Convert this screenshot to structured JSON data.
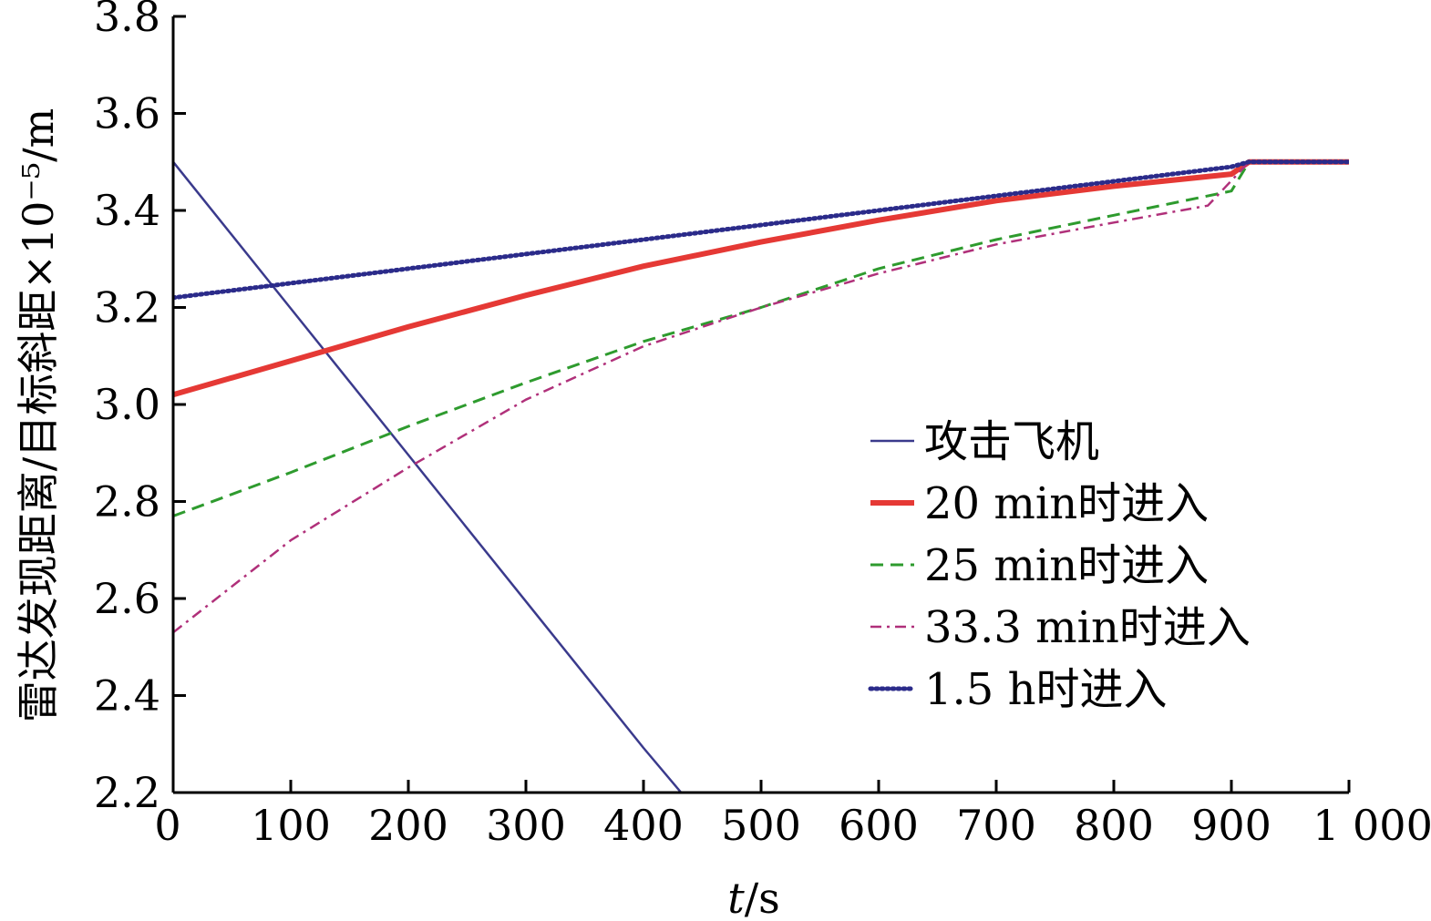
{
  "chart_data": {
    "type": "line",
    "title": "",
    "xlabel_italic": "t",
    "xlabel_unit": "/s",
    "ylabel": "雷达发现距离/目标斜距×10⁻⁵/m",
    "xlim": [
      0,
      1000
    ],
    "ylim": [
      2.2,
      3.8
    ],
    "xticks": [
      0,
      100,
      200,
      300,
      400,
      500,
      600,
      700,
      800,
      900,
      1000
    ],
    "xtick_labels": [
      "0",
      "100",
      "200",
      "300",
      "400",
      "500",
      "600",
      "700",
      "800",
      "900",
      "1 000"
    ],
    "yticks": [
      2.2,
      2.4,
      2.6,
      2.8,
      3.0,
      3.2,
      3.4,
      3.6,
      3.8
    ],
    "ytick_labels": [
      "2.2",
      "2.4",
      "2.6",
      "2.8",
      "3.0",
      "3.2",
      "3.4",
      "3.6",
      "3.8"
    ],
    "grid": false,
    "legend_position": "right-center",
    "series": [
      {
        "name": "攻击飞机",
        "color": "#3a3a8c",
        "style": "solid",
        "x": [
          0,
          100,
          200,
          300,
          400,
          432
        ],
        "y": [
          3.5,
          3.198,
          2.896,
          2.594,
          2.292,
          2.2
        ]
      },
      {
        "name": "20 min时进入",
        "color": "#e53935",
        "style": "solid-thick",
        "x": [
          0,
          100,
          200,
          300,
          400,
          500,
          600,
          700,
          800,
          900,
          915,
          1000
        ],
        "y": [
          3.02,
          3.09,
          3.16,
          3.225,
          3.285,
          3.335,
          3.38,
          3.42,
          3.45,
          3.475,
          3.5,
          3.5
        ]
      },
      {
        "name": "25 min时进入",
        "color": "#2e9b2e",
        "style": "dashed",
        "x": [
          0,
          100,
          200,
          300,
          400,
          500,
          600,
          700,
          800,
          900,
          915,
          1000
        ],
        "y": [
          2.77,
          2.86,
          2.955,
          3.045,
          3.13,
          3.2,
          3.28,
          3.34,
          3.39,
          3.44,
          3.5,
          3.5
        ]
      },
      {
        "name": "33.3 min时进入",
        "color": "#b0307a",
        "style": "dash-dot",
        "x": [
          0,
          100,
          200,
          300,
          400,
          500,
          600,
          700,
          800,
          880,
          915,
          1000
        ],
        "y": [
          2.53,
          2.72,
          2.87,
          3.01,
          3.12,
          3.2,
          3.27,
          3.33,
          3.375,
          3.41,
          3.5,
          3.5
        ]
      },
      {
        "name": "1.5 h时进入",
        "color": "#2b2b8a",
        "style": "dotted",
        "x": [
          0,
          100,
          200,
          300,
          400,
          500,
          600,
          700,
          800,
          900,
          915,
          1000
        ],
        "y": [
          3.22,
          3.25,
          3.28,
          3.31,
          3.34,
          3.37,
          3.4,
          3.43,
          3.46,
          3.49,
          3.5,
          3.5
        ]
      }
    ]
  }
}
